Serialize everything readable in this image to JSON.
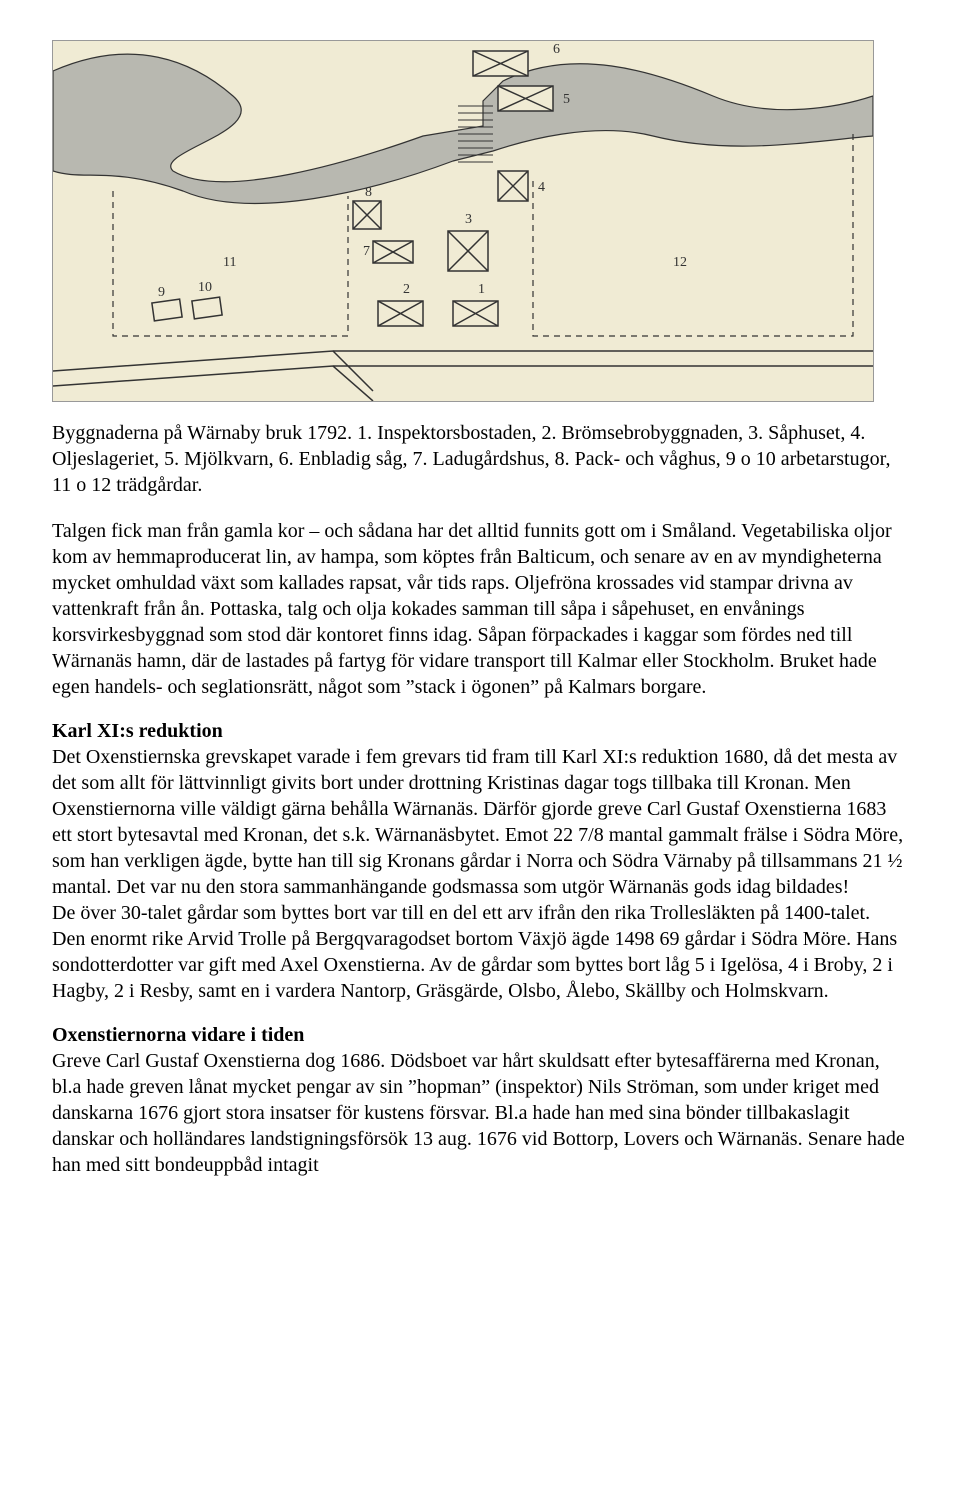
{
  "figure": {
    "background_color": "#f0ebd4",
    "stroke_color": "#333333",
    "river_fill": "#b8b8b0",
    "labels": [
      "1",
      "2",
      "3",
      "4",
      "5",
      "6",
      "7",
      "8",
      "9",
      "10",
      "11",
      "12"
    ],
    "caption": "Byggnaderna på Wärnaby bruk 1792. 1. Inspektorsbostaden, 2. Brömsebrobyggnaden, 3. Såphuset, 4. Oljeslageriet, 5. Mjölkvarn, 6. Enbladig såg, 7. Ladugårdshus, 8. Pack- och våghus, 9 o 10 arbetarstugor, 11 o 12 trädgårdar."
  },
  "paragraphs": {
    "p1": "Talgen fick man från gamla kor – och sådana har det alltid funnits gott om i Småland. Vegetabiliska oljor kom av hemmaproducerat lin, av hampa, som köptes från Balticum, och senare av en av myndigheterna mycket omhuldad växt som kallades rapsat, vår tids raps. Oljefröna krossades vid stampar drivna av vattenkraft från ån. Pottaska, talg och olja kokades samman till såpa i såpehuset, en envånings korsvirkesbyggnad som stod där kontoret finns idag. Såpan förpackades i kaggar som fördes ned till Wärnanäs hamn, där de lastades på fartyg för vidare transport till Kalmar eller Stockholm. Bruket hade egen handels- och seglationsrätt, något som ”stack i ögonen” på Kalmars borgare."
  },
  "sections": {
    "s1": {
      "heading": "Karl XI:s reduktion",
      "body": "Det Oxenstiernska grevskapet varade i fem grevars tid fram till Karl XI:s reduktion 1680, då det mesta av det som allt för lättvinnligt givits bort under drottning Kristinas dagar togs tillbaka till Kronan. Men Oxenstiernorna ville väldigt gärna behålla Wärnanäs. Därför gjorde greve Carl Gustaf Oxenstierna 1683 ett stort bytesavtal med Kronan, det s.k. Wärnanäsbytet. Emot 22 7/8 mantal gammalt frälse i Södra Möre, som han verkligen ägde, bytte han till sig Kronans gårdar i Norra och Södra Värnaby på tillsammans 21 ½ mantal. Det var nu den stora sammanhängande godsmassa som utgör Wärnanäs gods idag bildades!\nDe över 30-talet gårdar som byttes bort var till en del ett arv ifrån den rika Trollesläkten på 1400-talet. Den enormt rike Arvid Trolle på Bergqvaragodset bortom Växjö ägde 1498 69 gårdar i Södra Möre. Hans sondotterdotter var gift med Axel Oxenstierna. Av de gårdar som byttes bort låg 5 i Igelösa, 4 i Broby, 2 i Hagby, 2 i Resby, samt en i vardera Nantorp, Gräsgärde, Olsbo, Ålebo, Skällby och Holmskvarn."
    },
    "s2": {
      "heading": "Oxenstiernorna vidare i tiden",
      "body": "Greve Carl Gustaf Oxenstierna dog 1686. Dödsboet var hårt skuldsatt efter bytesaffärerna med Kronan, bl.a hade greven lånat mycket pengar av sin ”hopman” (inspektor) Nils Ströman, som under kriget med danskarna 1676 gjort stora insatser för kustens försvar. Bl.a hade han med sina bönder tillbakaslagit danskar och holländares landstigningsförsök 13 aug. 1676 vid Bottorp, Lovers och Wärnanäs. Senare hade han med sitt bondeuppbåd intagit"
    }
  }
}
